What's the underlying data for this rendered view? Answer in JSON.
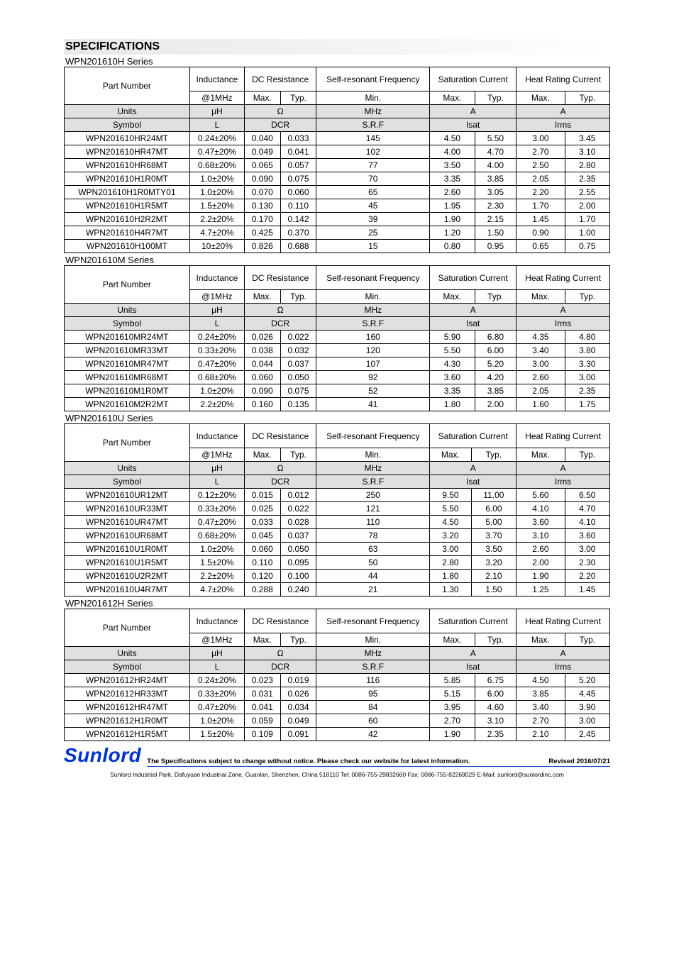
{
  "title": "SPECIFICATIONS",
  "headers": {
    "part_number": "Part Number",
    "inductance": "Inductance",
    "dc_resistance": "DC Resistance",
    "srf": "Self-resonant Frequency",
    "sat_current": "Saturation Current",
    "heat_current": "Heat Rating Current",
    "at1mhz": "@1MHz",
    "max": "Max.",
    "typ": "Typ.",
    "min": "Min.",
    "units": "Units",
    "uH": "μH",
    "ohm": "Ω",
    "mhz": "MHz",
    "A": "A",
    "symbol": "Symbol",
    "L": "L",
    "DCR": "DCR",
    "SRF": "S.R.F",
    "Isat": "Isat",
    "Irms": "Irms"
  },
  "tables": [
    {
      "series": "WPN201610H Series",
      "rows": [
        [
          "WPN201610HR24MT",
          "0.24±20%",
          "0.040",
          "0.033",
          "145",
          "4.50",
          "5.50",
          "3.00",
          "3.45"
        ],
        [
          "WPN201610HR47MT",
          "0.47±20%",
          "0.049",
          "0.041",
          "102",
          "4.00",
          "4.70",
          "2.70",
          "3.10"
        ],
        [
          "WPN201610HR68MT",
          "0.68±20%",
          "0.065",
          "0.057",
          "77",
          "3.50",
          "4.00",
          "2.50",
          "2.80"
        ],
        [
          "WPN201610H1R0MT",
          "1.0±20%",
          "0.090",
          "0.075",
          "70",
          "3.35",
          "3.85",
          "2.05",
          "2.35"
        ],
        [
          "WPN201610H1R0MTY01",
          "1.0±20%",
          "0.070",
          "0.060",
          "65",
          "2.60",
          "3.05",
          "2.20",
          "2.55"
        ],
        [
          "WPN201610H1R5MT",
          "1.5±20%",
          "0.130",
          "0.110",
          "45",
          "1.95",
          "2.30",
          "1.70",
          "2.00"
        ],
        [
          "WPN201610H2R2MT",
          "2.2±20%",
          "0.170",
          "0.142",
          "39",
          "1.90",
          "2.15",
          "1.45",
          "1.70"
        ],
        [
          "WPN201610H4R7MT",
          "4.7±20%",
          "0.425",
          "0.370",
          "25",
          "1.20",
          "1.50",
          "0.90",
          "1.00"
        ],
        [
          "WPN201610H100MT",
          "10±20%",
          "0.826",
          "0.688",
          "15",
          "0.80",
          "0.95",
          "0.65",
          "0.75"
        ]
      ]
    },
    {
      "series": "WPN201610M Series",
      "rows": [
        [
          "WPN201610MR24MT",
          "0.24±20%",
          "0.026",
          "0.022",
          "160",
          "5.90",
          "6.80",
          "4.35",
          "4.80"
        ],
        [
          "WPN201610MR33MT",
          "0.33±20%",
          "0.038",
          "0.032",
          "120",
          "5.50",
          "6.00",
          "3.40",
          "3.80"
        ],
        [
          "WPN201610MR47MT",
          "0.47±20%",
          "0.044",
          "0.037",
          "107",
          "4.30",
          "5.20",
          "3.00",
          "3.30"
        ],
        [
          "WPN201610MR68MT",
          "0.68±20%",
          "0.060",
          "0.050",
          "92",
          "3.60",
          "4.20",
          "2.60",
          "3.00"
        ],
        [
          "WPN201610M1R0MT",
          "1.0±20%",
          "0.090",
          "0.075",
          "52",
          "3.35",
          "3.85",
          "2.05",
          "2.35"
        ],
        [
          "WPN201610M2R2MT",
          "2.2±20%",
          "0.160",
          "0.135",
          "41",
          "1.80",
          "2.00",
          "1.60",
          "1.75"
        ]
      ]
    },
    {
      "series": "WPN201610U Series",
      "rows": [
        [
          "WPN201610UR12MT",
          "0.12±20%",
          "0.015",
          "0.012",
          "250",
          "9.50",
          "11.00",
          "5.60",
          "6.50"
        ],
        [
          "WPN201610UR33MT",
          "0.33±20%",
          "0.025",
          "0.022",
          "121",
          "5.50",
          "6.00",
          "4.10",
          "4.70"
        ],
        [
          "WPN201610UR47MT",
          "0.47±20%",
          "0.033",
          "0.028",
          "110",
          "4.50",
          "5.00",
          "3.60",
          "4.10"
        ],
        [
          "WPN201610UR68MT",
          "0.68±20%",
          "0.045",
          "0.037",
          "78",
          "3.20",
          "3.70",
          "3.10",
          "3.60"
        ],
        [
          "WPN201610U1R0MT",
          "1.0±20%",
          "0.060",
          "0.050",
          "63",
          "3.00",
          "3.50",
          "2.60",
          "3.00"
        ],
        [
          "WPN201610U1R5MT",
          "1.5±20%",
          "0.110",
          "0.095",
          "50",
          "2.80",
          "3.20",
          "2.00",
          "2.30"
        ],
        [
          "WPN201610U2R2MT",
          "2.2±20%",
          "0.120",
          "0.100",
          "44",
          "1.80",
          "2.10",
          "1.90",
          "2.20"
        ],
        [
          "WPN201610U4R7MT",
          "4.7±20%",
          "0.288",
          "0.240",
          "21",
          "1.30",
          "1.50",
          "1.25",
          "1.45"
        ]
      ]
    },
    {
      "series": "WPN201612H Series",
      "rows": [
        [
          "WPN201612HR24MT",
          "0.24±20%",
          "0.023",
          "0.019",
          "116",
          "5.85",
          "6.75",
          "4.50",
          "5.20"
        ],
        [
          "WPN201612HR33MT",
          "0.33±20%",
          "0.031",
          "0.026",
          "95",
          "5.15",
          "6.00",
          "3.85",
          "4.45"
        ],
        [
          "WPN201612HR47MT",
          "0.47±20%",
          "0.041",
          "0.034",
          "84",
          "3.95",
          "4.60",
          "3.40",
          "3.90"
        ],
        [
          "WPN201612H1R0MT",
          "1.0±20%",
          "0.059",
          "0.049",
          "60",
          "2.70",
          "3.10",
          "2.70",
          "3.00"
        ],
        [
          "WPN201612H1R5MT",
          "1.5±20%",
          "0.109",
          "0.091",
          "42",
          "1.90",
          "2.35",
          "2.10",
          "2.45"
        ]
      ]
    }
  ],
  "footer": {
    "logo": "Sunlord",
    "notice": "The Specifications subject to change without notice. Please check our website for latest information.",
    "revised": "Revised 2016/07/21",
    "address": "Sunlord Industrial Park, Dafuyuan Industrial Zone, Guanlan, Shenzhen, China 518110 Tel: 0086-755-29832660 Fax: 0086-755-82269029 E-Mail: sunlord@sunlordinc.com"
  }
}
